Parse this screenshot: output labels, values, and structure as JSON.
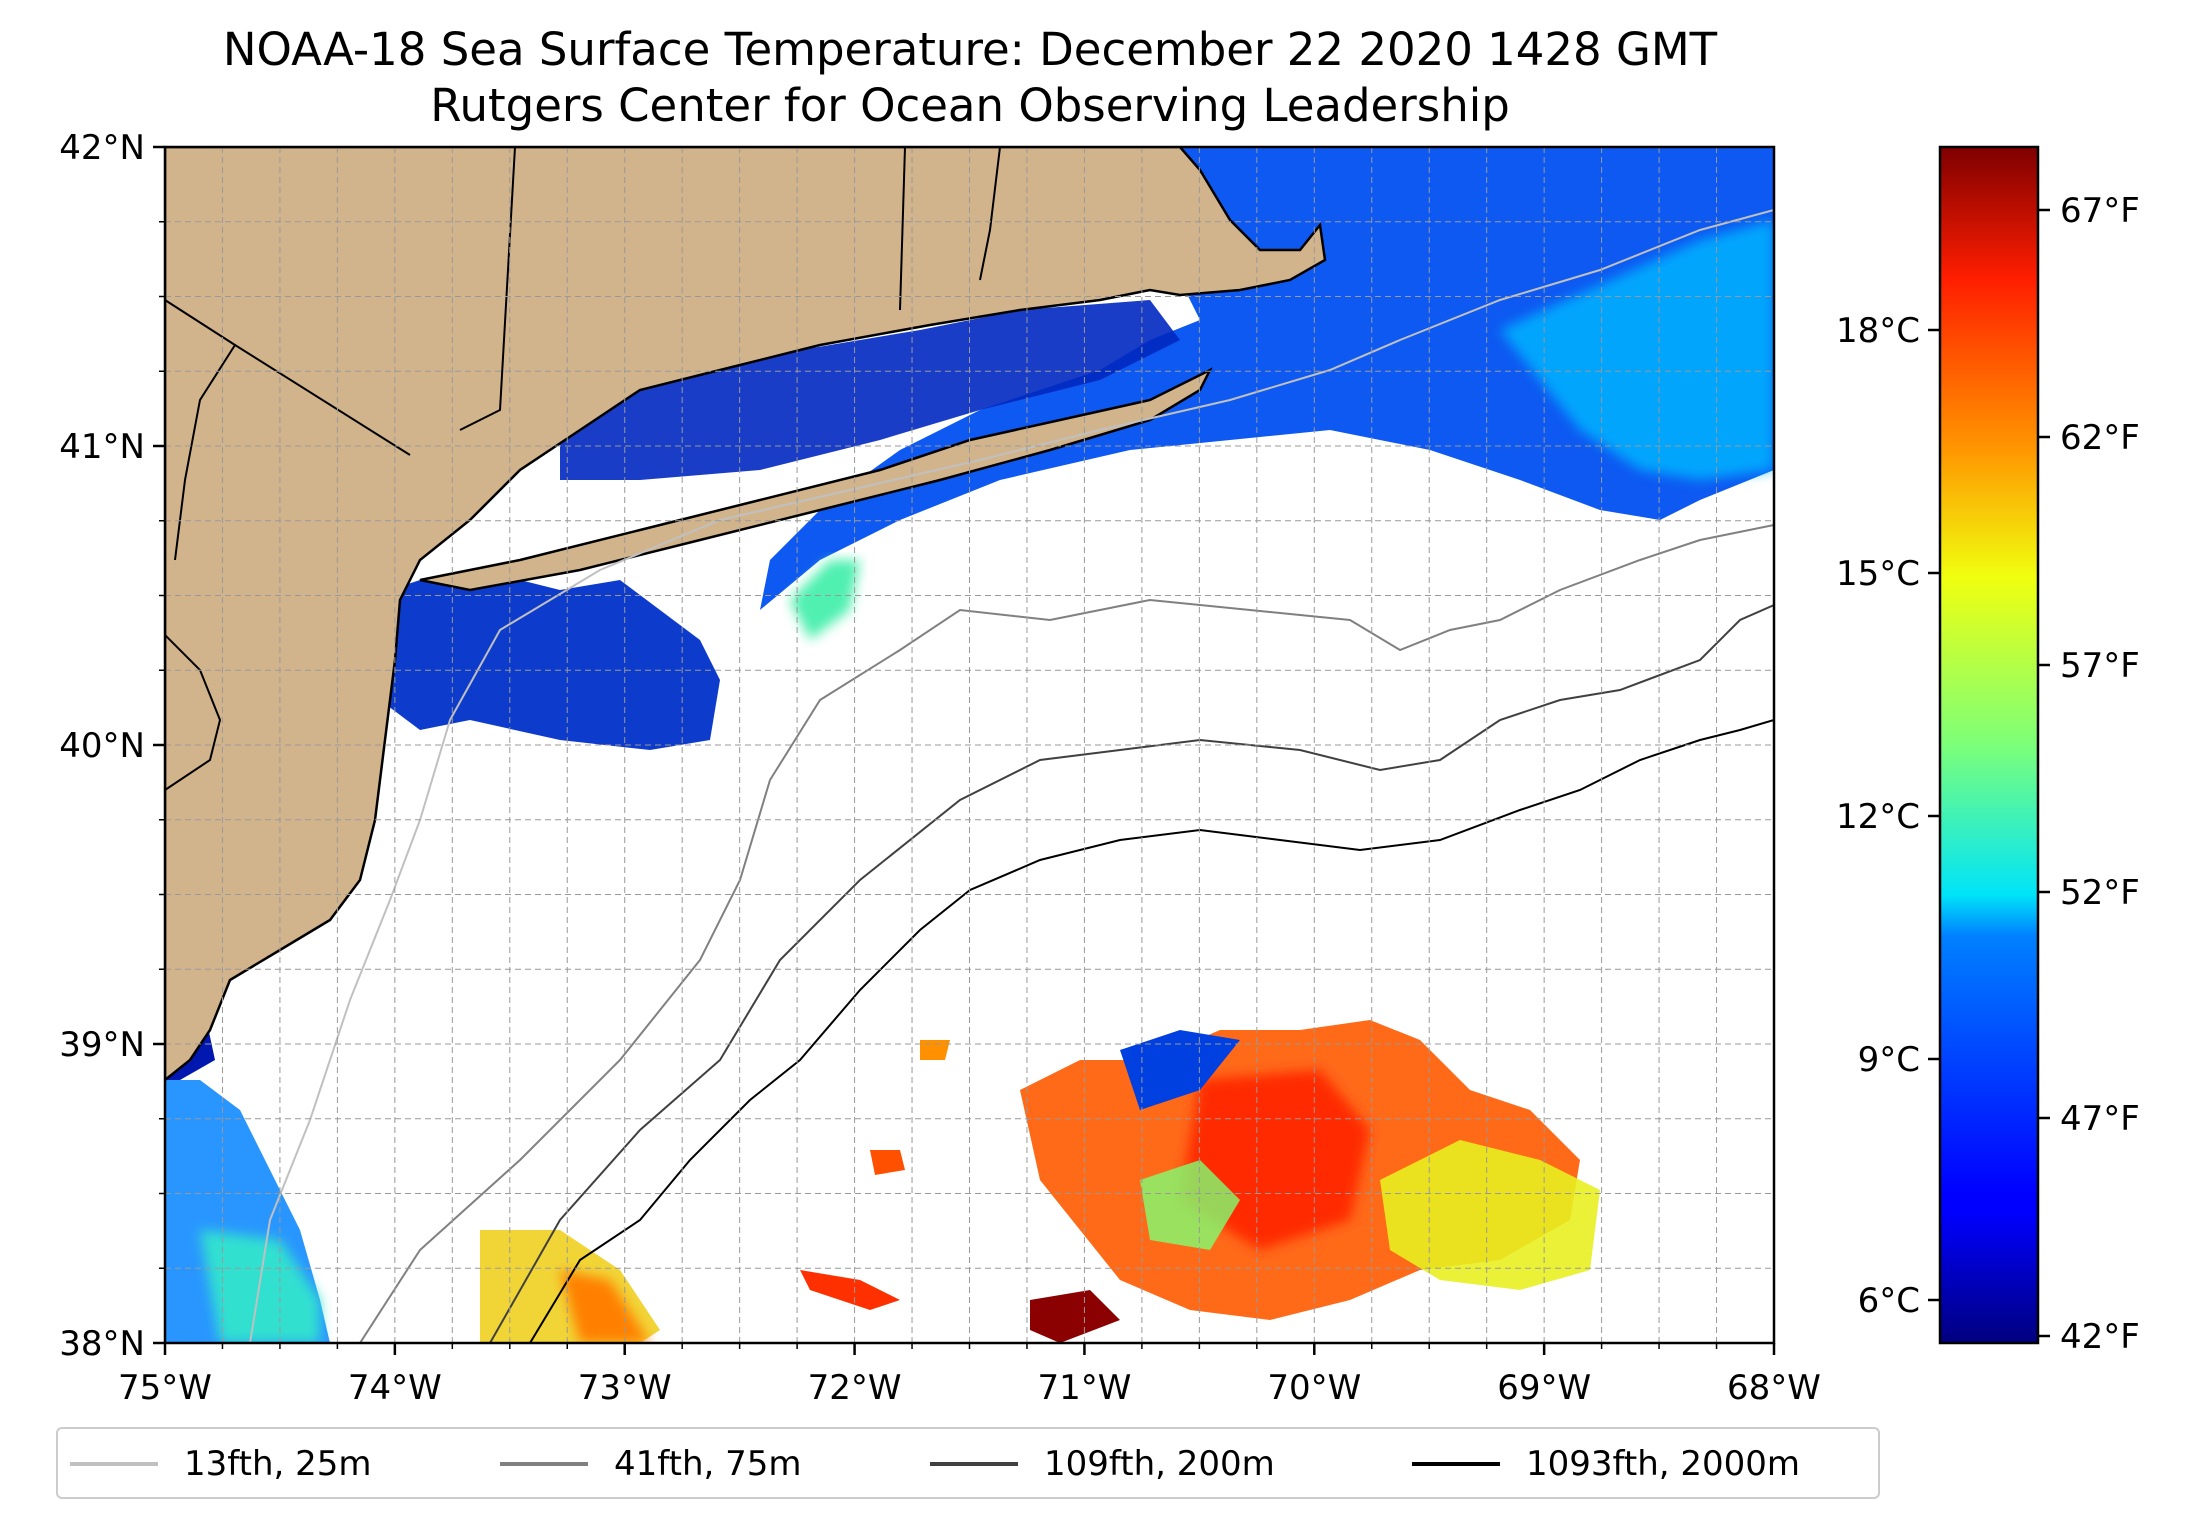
{
  "title": "NOAA-18 Sea Surface Temperature: December 22 2020 1428 GMT",
  "subtitle": "Rutgers Center for Ocean Observing Leadership",
  "map": {
    "lon_range": [
      -75,
      -68
    ],
    "lat_range": [
      38,
      42
    ],
    "x_ticks": [
      "75°W",
      "74°W",
      "73°W",
      "72°W",
      "71°W",
      "70°W",
      "69°W",
      "68°W"
    ],
    "y_ticks": [
      "42°N",
      "41°N",
      "40°N",
      "39°N",
      "38°N"
    ],
    "grid": "dashed, 0.25° spacing",
    "land_color": "#D2B48C",
    "no_data_color": "#FFFFFF"
  },
  "colorbar": {
    "colormap": "jet",
    "celsius_ticks": [
      "18°C",
      "15°C",
      "12°C",
      "9°C",
      "6°C"
    ],
    "fahrenheit_ticks": [
      "67°F",
      "62°F",
      "57°F",
      "52°F",
      "47°F",
      "42°F"
    ]
  },
  "legend": {
    "placement": "bottom",
    "items": [
      {
        "label": "13fth, 25m",
        "color": "#C0C0C0"
      },
      {
        "label": "41fth, 75m",
        "color": "#808080"
      },
      {
        "label": "109fth, 200m",
        "color": "#404040"
      },
      {
        "label": "1093fth, 2000m",
        "color": "#000000"
      }
    ]
  }
}
